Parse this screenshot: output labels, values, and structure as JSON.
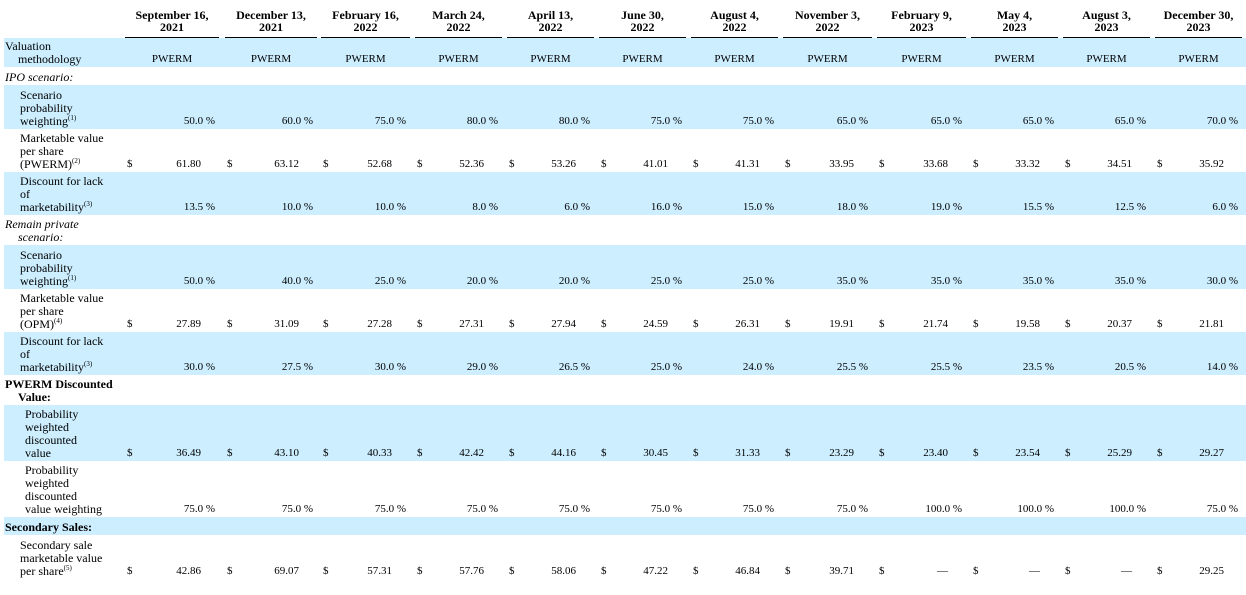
{
  "columns": [
    [
      "September 16,",
      "2021"
    ],
    [
      "December 13,",
      "2021"
    ],
    [
      "February 16,",
      "2022"
    ],
    [
      "March 24,",
      "2022"
    ],
    [
      "April 13,",
      "2022"
    ],
    [
      "June 30,",
      "2022"
    ],
    [
      "August 4,",
      "2022"
    ],
    [
      "November 3,",
      "2022"
    ],
    [
      "February 9,",
      "2023"
    ],
    [
      "May 4,",
      "2023"
    ],
    [
      "August 3,",
      "2023"
    ],
    [
      "December 30,",
      "2023"
    ]
  ],
  "rows": [
    {
      "label": [
        "Valuation",
        "methodology"
      ],
      "style": "plain",
      "shade": true,
      "kind": "text",
      "values": [
        "PWERM",
        "PWERM",
        "PWERM",
        "PWERM",
        "PWERM",
        "PWERM",
        "PWERM",
        "PWERM",
        "PWERM",
        "PWERM",
        "PWERM",
        "PWERM"
      ]
    },
    {
      "label": [
        "IPO scenario:"
      ],
      "style": "ital",
      "shade": false,
      "kind": "none"
    },
    {
      "label": [
        "Scenario",
        "probability",
        "weighting"
      ],
      "sup": "(1)",
      "style": "ind1",
      "shade": true,
      "kind": "pct",
      "values": [
        "50.0 %",
        "60.0 %",
        "75.0 %",
        "80.0 %",
        "80.0 %",
        "75.0 %",
        "75.0 %",
        "65.0 %",
        "65.0 %",
        "65.0 %",
        "65.0 %",
        "70.0 %"
      ]
    },
    {
      "label": [
        "Marketable value",
        "per share",
        "(PWERM)"
      ],
      "sup": "(2)",
      "style": "ind1",
      "shade": false,
      "kind": "usd",
      "currency": "$",
      "values": [
        "61.80",
        "63.12",
        "52.68",
        "52.36",
        "53.26",
        "41.01",
        "41.31",
        "33.95",
        "33.68",
        "33.32",
        "34.51",
        "35.92"
      ]
    },
    {
      "label": [
        "Discount for lack",
        "of",
        "marketability"
      ],
      "sup": "(3)",
      "style": "ind1",
      "shade": true,
      "kind": "pct",
      "values": [
        "13.5 %",
        "10.0 %",
        "10.0 %",
        "8.0 %",
        "6.0 %",
        "16.0 %",
        "15.0 %",
        "18.0 %",
        "19.0 %",
        "15.5 %",
        "12.5 %",
        "6.0 %"
      ]
    },
    {
      "label": [
        "Remain private",
        "scenario:"
      ],
      "style": "ital",
      "shade": false,
      "kind": "none"
    },
    {
      "label": [
        "Scenario",
        "probability",
        "weighting"
      ],
      "sup": "(1)",
      "style": "ind1",
      "shade": true,
      "kind": "pct",
      "values": [
        "50.0 %",
        "40.0 %",
        "25.0 %",
        "20.0 %",
        "20.0 %",
        "25.0 %",
        "25.0 %",
        "35.0 %",
        "35.0 %",
        "35.0 %",
        "35.0 %",
        "30.0 %"
      ]
    },
    {
      "label": [
        "Marketable value",
        "per share",
        "(OPM)"
      ],
      "sup": "(4)",
      "style": "ind1",
      "shade": false,
      "kind": "usd",
      "currency": "$",
      "values": [
        "27.89",
        "31.09",
        "27.28",
        "27.31",
        "27.94",
        "24.59",
        "26.31",
        "19.91",
        "21.74",
        "19.58",
        "20.37",
        "21.81"
      ]
    },
    {
      "label": [
        "Discount for lack",
        "of",
        "marketability"
      ],
      "sup": "(3)",
      "style": "ind1",
      "shade": true,
      "kind": "pct",
      "values": [
        "30.0 %",
        "27.5 %",
        "30.0 %",
        "29.0 %",
        "26.5 %",
        "25.0 %",
        "24.0 %",
        "25.5 %",
        "25.5 %",
        "23.5 %",
        "20.5 %",
        "14.0 %"
      ]
    },
    {
      "label": [
        "PWERM Discounted",
        "Value:"
      ],
      "style": "bold",
      "shade": false,
      "kind": "none"
    },
    {
      "label": [
        "Probability",
        "weighted",
        "discounted",
        "value"
      ],
      "style": "ind2",
      "shade": true,
      "kind": "usd",
      "currency": "$",
      "values": [
        "36.49",
        "43.10",
        "40.33",
        "42.42",
        "44.16",
        "30.45",
        "31.33",
        "23.29",
        "23.40",
        "23.54",
        "25.29",
        "29.27"
      ]
    },
    {
      "label": [
        "Probability",
        "weighted",
        "discounted",
        "value weighting"
      ],
      "style": "ind2",
      "shade": false,
      "kind": "pct",
      "values": [
        "75.0 %",
        "75.0 %",
        "75.0 %",
        "75.0 %",
        "75.0 %",
        "75.0 %",
        "75.0 %",
        "75.0 %",
        "100.0 %",
        "100.0 %",
        "100.0 %",
        "75.0 %"
      ]
    },
    {
      "label": [
        "Secondary Sales:"
      ],
      "style": "bold",
      "shade": true,
      "kind": "none"
    },
    {
      "label": [
        "Secondary sale",
        "marketable value",
        "per share"
      ],
      "sup": "(5)",
      "style": "ind1",
      "shade": false,
      "kind": "usd",
      "currency": "$",
      "values": [
        "42.86",
        "69.07",
        "57.31",
        "57.76",
        "58.06",
        "47.22",
        "46.84",
        "39.71",
        "—",
        "—",
        "—",
        "29.25"
      ]
    }
  ]
}
